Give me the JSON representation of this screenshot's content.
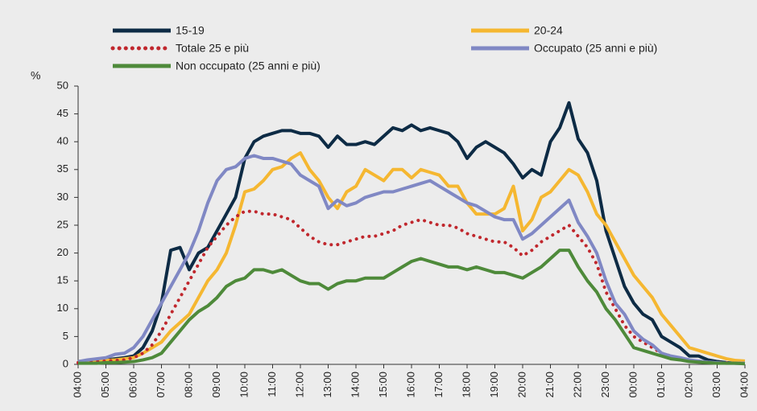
{
  "chart_data": {
    "type": "line",
    "y_label": "%",
    "legend": "top",
    "categories": [
      "04:00",
      null,
      null,
      "05:00",
      null,
      null,
      "06:00",
      null,
      null,
      "07:00",
      null,
      null,
      "08:00",
      null,
      null,
      "09:00",
      null,
      null,
      "10:00",
      null,
      null,
      "11:00",
      null,
      null,
      "12:00",
      null,
      null,
      "13:00",
      null,
      null,
      "14:00",
      null,
      null,
      "15:00",
      null,
      null,
      "16:00",
      null,
      null,
      "17:00",
      null,
      null,
      "18:00",
      null,
      null,
      "19:00",
      null,
      null,
      "20:00",
      null,
      null,
      "21:00",
      null,
      null,
      "22:00",
      null,
      null,
      "23:00",
      null,
      null,
      "00:00",
      null,
      null,
      "01:00",
      null,
      null,
      "02:00",
      null,
      null,
      "03:00",
      null,
      null,
      "04:00"
    ],
    "ylim": [
      0,
      50
    ],
    "yticks": [
      0,
      5,
      10,
      15,
      20,
      25,
      30,
      35,
      40,
      45,
      50
    ],
    "grid": false,
    "series": [
      {
        "name": "15-19",
        "color": "#0d2b45",
        "style": "solid",
        "values": [
          0.5,
          0.6,
          0.7,
          0.8,
          1,
          1.2,
          1.5,
          3,
          6,
          11,
          20.5,
          21,
          17,
          20,
          21,
          24,
          27,
          30,
          37,
          40,
          41,
          41.5,
          42,
          42,
          41.5,
          41.5,
          41,
          39,
          41,
          39.5,
          39.5,
          40,
          39.5,
          41,
          42.5,
          42,
          43,
          42,
          42.5,
          42,
          41.5,
          40,
          37,
          39,
          40,
          39,
          38,
          36,
          33.5,
          35,
          34,
          40,
          42.5,
          47,
          40.5,
          38,
          33,
          24,
          19,
          14,
          11,
          9,
          8,
          5,
          4,
          3,
          1.5,
          1.5,
          0.8,
          0.5,
          0.3,
          0.2,
          0.2
        ]
      },
      {
        "name": "20-24",
        "color": "#f5b731",
        "style": "solid",
        "values": [
          0.4,
          0.5,
          0.6,
          0.7,
          0.8,
          1,
          1.2,
          2,
          3,
          4,
          6,
          7.5,
          9,
          12,
          15,
          17,
          20,
          25,
          31,
          31.5,
          33,
          35,
          35.5,
          37,
          38,
          35,
          33,
          30,
          28,
          31,
          32,
          35,
          34,
          33,
          35,
          35,
          33.5,
          35,
          34.5,
          34,
          32,
          32,
          29,
          27,
          27,
          27,
          28,
          32,
          24,
          26,
          30,
          31,
          33,
          35,
          34,
          31,
          27,
          25,
          22,
          19,
          16,
          14,
          12,
          9,
          7,
          5,
          3,
          2.5,
          2,
          1.5,
          1,
          0.7,
          0.6
        ]
      },
      {
        "name": "Totale 25 e più",
        "color": "#c0272d",
        "style": "dotted",
        "values": [
          0.3,
          0.4,
          0.5,
          0.6,
          0.7,
          0.8,
          1.2,
          2,
          3.5,
          6,
          9,
          12,
          15,
          18,
          21,
          23,
          25,
          26.5,
          27.5,
          27.5,
          27,
          27,
          26.5,
          26,
          24.5,
          23,
          22,
          21.5,
          21.5,
          22,
          22.5,
          23,
          23,
          23.5,
          24,
          25,
          25.5,
          26,
          25.5,
          25,
          25,
          24.5,
          23.5,
          23,
          22.5,
          22,
          22,
          21,
          19.5,
          20.5,
          22,
          23,
          24,
          25,
          23,
          21,
          18,
          13,
          10,
          7,
          5,
          4,
          3,
          2,
          1.5,
          1,
          0.7,
          0.5,
          0.4,
          0.3,
          0.3,
          0.2,
          0.2
        ]
      },
      {
        "name": "Occupato (25 anni e più)",
        "color": "#8088c4",
        "style": "solid",
        "values": [
          0.5,
          0.8,
          1,
          1.2,
          1.8,
          2,
          3,
          5,
          8,
          11,
          14,
          17,
          20,
          24,
          29,
          33,
          35,
          35.5,
          37,
          37.5,
          37,
          37,
          36.5,
          36,
          34,
          33,
          32,
          28,
          29.5,
          28.5,
          29,
          30,
          30.5,
          31,
          31,
          31.5,
          32,
          32.5,
          33,
          32,
          31,
          30,
          29,
          28.5,
          27.5,
          26.5,
          26,
          26,
          22.5,
          23.5,
          25,
          26.5,
          28,
          29.5,
          25.5,
          23,
          20,
          15,
          11,
          9,
          6,
          4.5,
          3.5,
          2,
          1.5,
          1.2,
          0.8,
          0.6,
          0.4,
          0.3,
          0.2,
          0.2,
          0.2
        ]
      },
      {
        "name": "Non occupato (25 anni e più)",
        "color": "#4e8a3a",
        "style": "solid",
        "values": [
          0.2,
          0.2,
          0.2,
          0.3,
          0.3,
          0.4,
          0.5,
          0.8,
          1.2,
          2,
          4,
          6,
          8,
          9.5,
          10.5,
          12,
          14,
          15,
          15.5,
          17,
          17,
          16.5,
          17,
          16,
          15,
          14.5,
          14.5,
          13.5,
          14.5,
          15,
          15,
          15.5,
          15.5,
          15.5,
          16.5,
          17.5,
          18.5,
          19,
          18.5,
          18,
          17.5,
          17.5,
          17,
          17.5,
          17,
          16.5,
          16.5,
          16,
          15.5,
          16.5,
          17.5,
          19,
          20.5,
          20.5,
          17.5,
          15,
          13,
          10,
          8,
          5.5,
          3,
          2.5,
          2,
          1.5,
          1,
          0.8,
          0.5,
          0.4,
          0.3,
          0.2,
          0.2,
          0.2,
          0.1
        ]
      }
    ]
  }
}
